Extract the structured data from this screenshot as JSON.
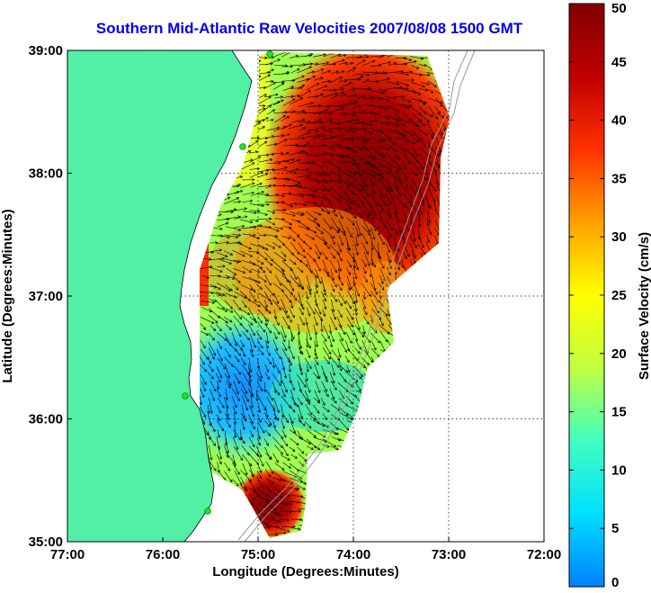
{
  "title": "Southern Mid-Atlantic Raw Velocities 2007/08/08 1500 GMT",
  "title_color": "#0000ee",
  "map": {
    "xlabel": "Longitude (Degrees:Minutes)",
    "ylabel": "Latitude (Degrees:Minutes)",
    "lon_range": [
      -77,
      -72
    ],
    "lat_range": [
      35,
      39
    ],
    "lon_ticks": [
      {
        "value": -77,
        "label": "77:00"
      },
      {
        "value": -76,
        "label": "76:00"
      },
      {
        "value": -75,
        "label": "75:00"
      },
      {
        "value": -74,
        "label": "74:00"
      },
      {
        "value": -73,
        "label": "73:00"
      },
      {
        "value": -72,
        "label": "72:00"
      }
    ],
    "lat_ticks": [
      {
        "value": 35,
        "label": "35:00"
      },
      {
        "value": 36,
        "label": "36:00"
      },
      {
        "value": 37,
        "label": "37:00"
      },
      {
        "value": 38,
        "label": "38:00"
      },
      {
        "value": 39,
        "label": "39:00"
      }
    ],
    "grid": "dotted",
    "land_color": "#52f0a4",
    "station_color": "#22dd22"
  },
  "colorbar": {
    "label": "Surface Velocity (cm/s)",
    "range": [
      0,
      50
    ],
    "ticks": [
      {
        "value": 0,
        "label": "0"
      },
      {
        "value": 5,
        "label": "5"
      },
      {
        "value": 10,
        "label": "10"
      },
      {
        "value": 15,
        "label": "15"
      },
      {
        "value": 20,
        "label": "20"
      },
      {
        "value": 25,
        "label": "25"
      },
      {
        "value": 30,
        "label": "30"
      },
      {
        "value": 35,
        "label": "35"
      },
      {
        "value": 40,
        "label": "40"
      },
      {
        "value": 45,
        "label": "45"
      },
      {
        "value": 50,
        "label": "50"
      }
    ],
    "colormap": [
      "#0080ff",
      "#00e0ff",
      "#40ffc0",
      "#c0ff40",
      "#ffff00",
      "#ffa000",
      "#ff3000",
      "#c00000",
      "#800000"
    ]
  }
}
